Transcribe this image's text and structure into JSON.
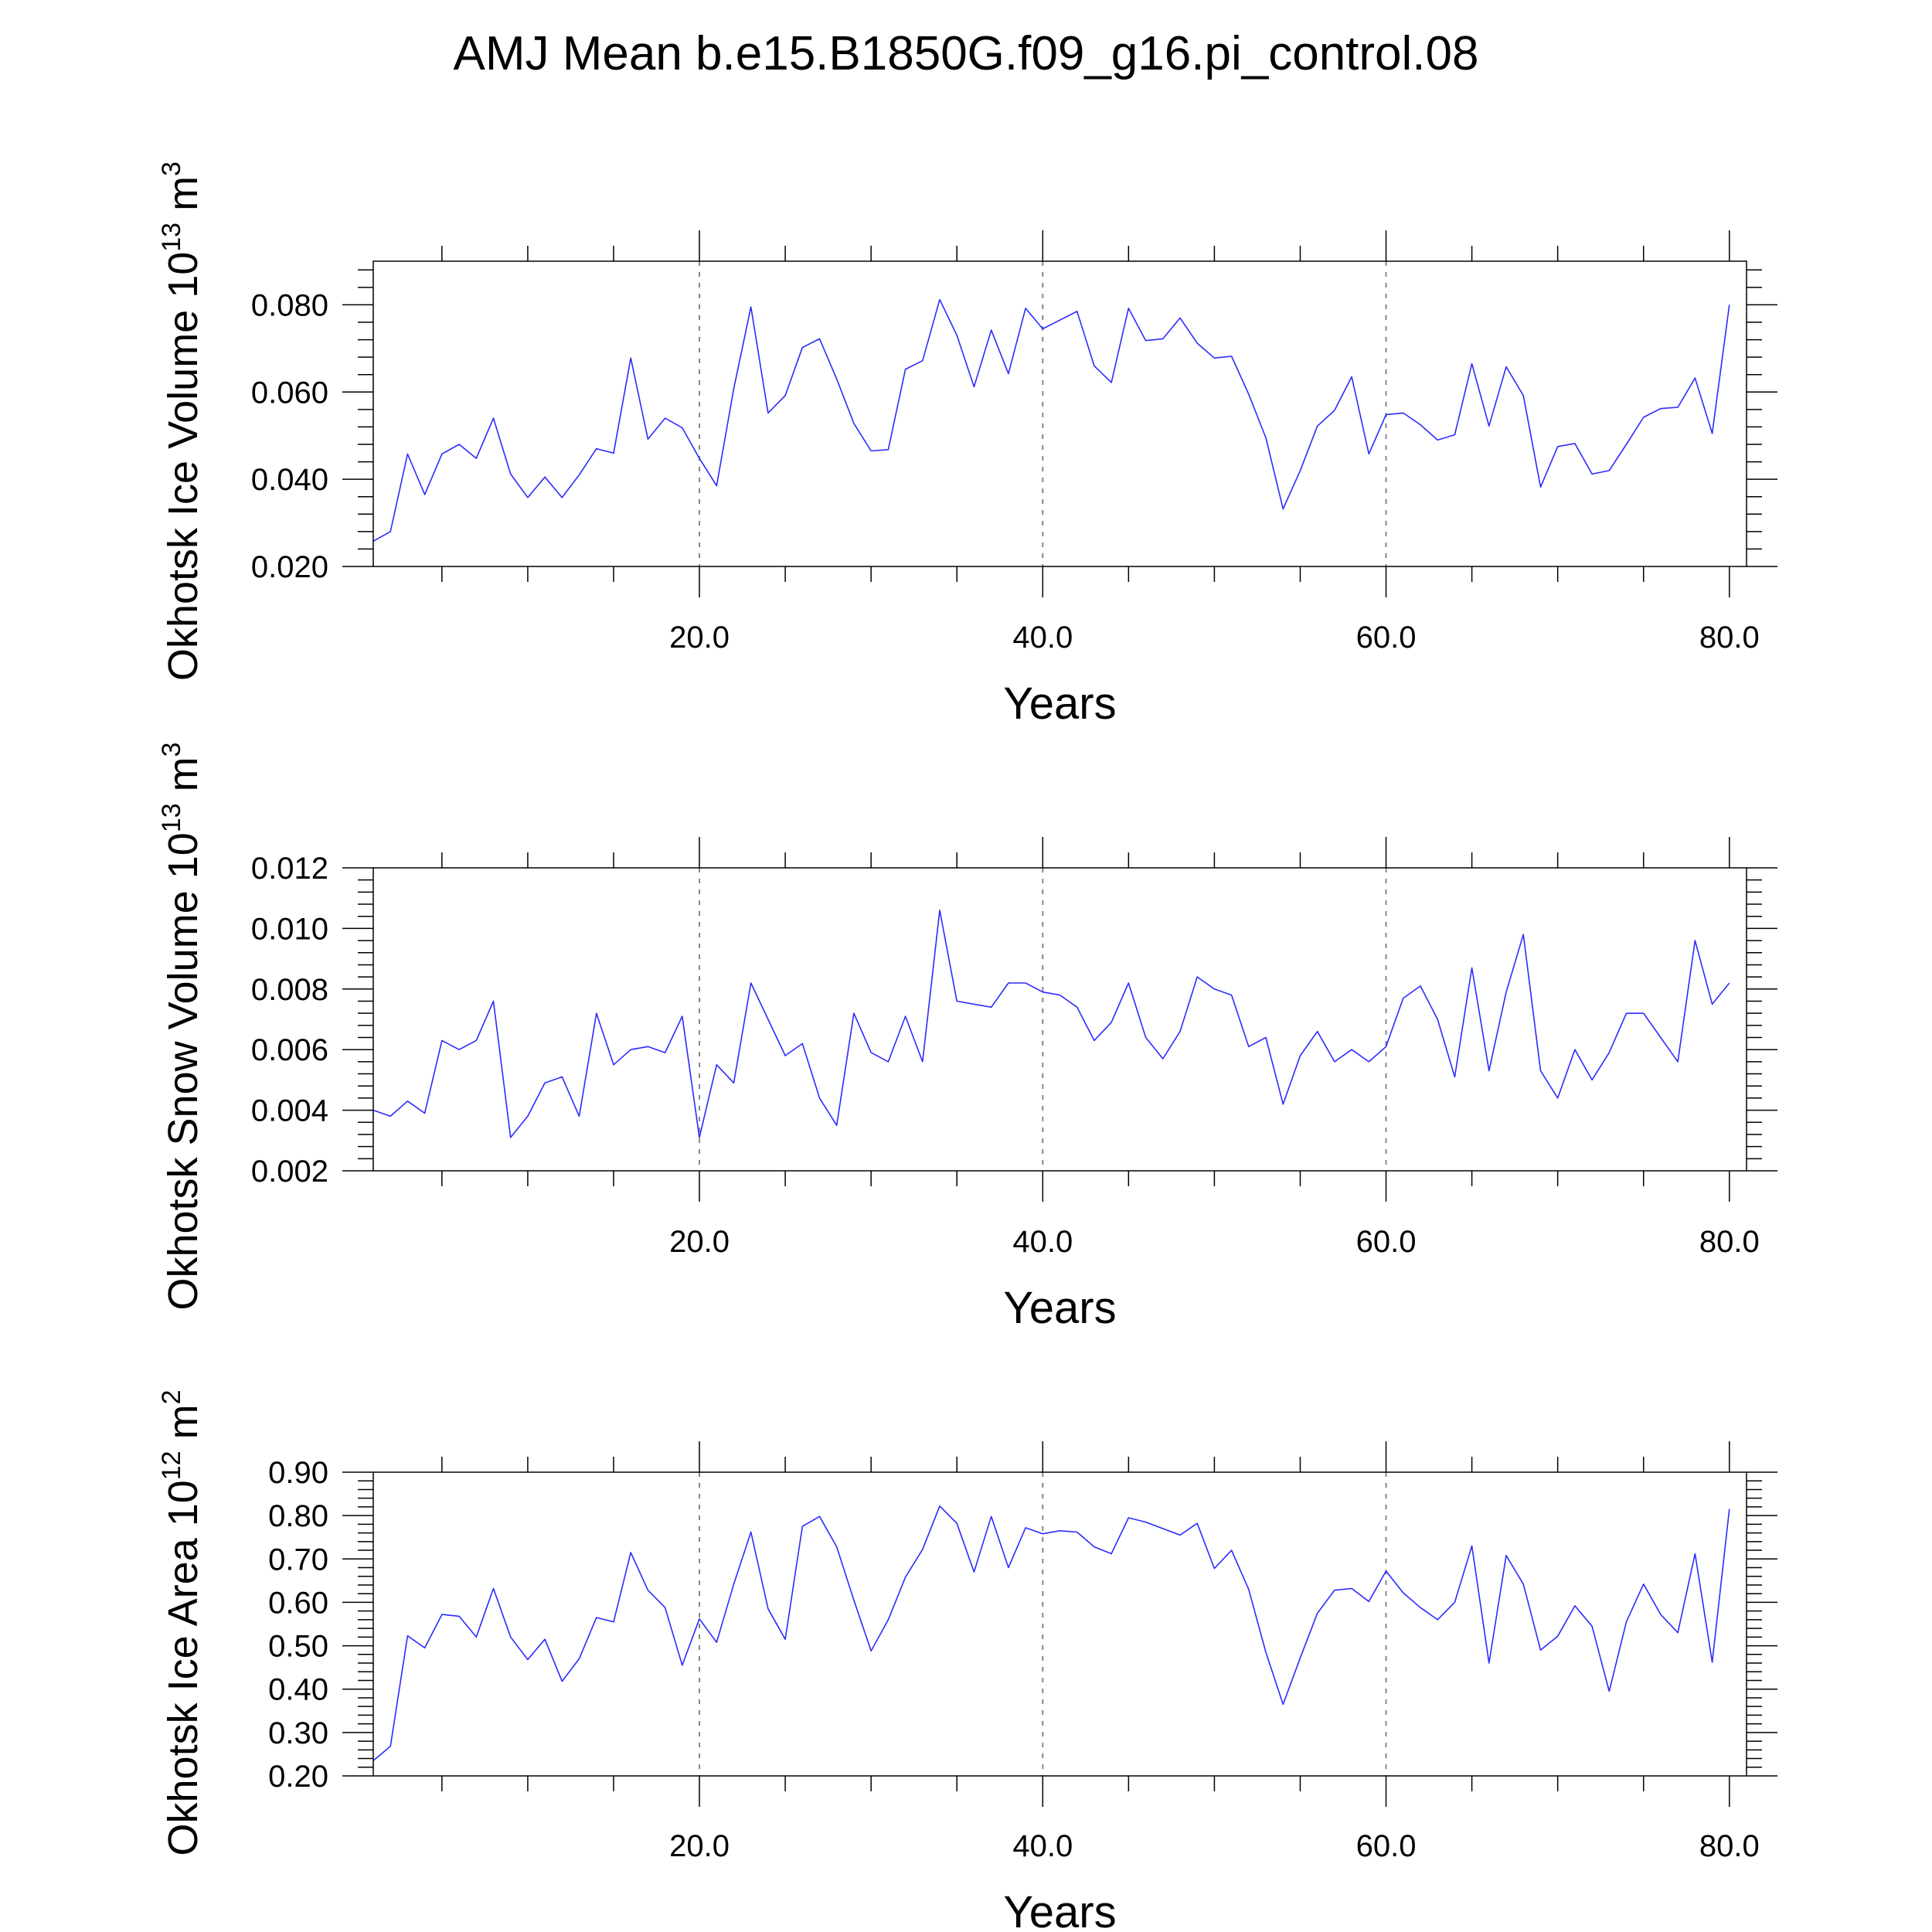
{
  "title": "AMJ Mean b.e15.B1850G.f09_g16.pi_control.08",
  "colors": {
    "series": "#2b2bff",
    "frame": "#000000",
    "grid": "#888888"
  },
  "chart_data": [
    {
      "type": "line",
      "title": "AMJ Mean b.e15.B1850G.f09_g16.pi_control.08",
      "xlabel": "Years",
      "ylabel": {
        "prefix": "Okhotsk Ice Volume 10",
        "exp": "13",
        "unit": " m",
        "unit_exp": "3"
      },
      "xlim": [
        1,
        81
      ],
      "ylim": [
        0.02,
        0.09
      ],
      "yticks": [
        0.02,
        0.04,
        0.06,
        0.08
      ],
      "ytick_labels": [
        "0.020",
        "0.040",
        "0.060",
        "0.080"
      ],
      "xticks": [
        20,
        40,
        60,
        80
      ],
      "xtick_labels": [
        "20.0",
        "40.0",
        "60.0",
        "80.0"
      ],
      "grid_x": [
        20,
        40,
        60
      ],
      "series": [
        {
          "name": "Okhotsk Ice Volume",
          "x_start": 1,
          "values": [
            0.0258,
            0.028,
            0.0458,
            0.0365,
            0.0458,
            0.048,
            0.0448,
            0.054,
            0.0412,
            0.0358,
            0.0405,
            0.0358,
            0.041,
            0.047,
            0.046,
            0.0678,
            0.0492,
            0.054,
            0.0518,
            0.0448,
            0.0385,
            0.0608,
            0.0795,
            0.0552,
            0.0592,
            0.0702,
            0.0722,
            0.063,
            0.0528,
            0.0465,
            0.0468,
            0.0652,
            0.0672,
            0.0812,
            0.073,
            0.0612,
            0.0742,
            0.0642,
            0.0792,
            0.0745,
            0.0765,
            0.0785,
            0.066,
            0.0622,
            0.0792,
            0.0718,
            0.0722,
            0.077,
            0.0712,
            0.0678,
            0.0682,
            0.0595,
            0.0495,
            0.0332,
            0.042,
            0.0522,
            0.0558,
            0.0635,
            0.0458,
            0.0548,
            0.0552,
            0.0525,
            0.049,
            0.0502,
            0.0665,
            0.0522,
            0.0658,
            0.0592,
            0.0382,
            0.0475,
            0.0482,
            0.0412,
            0.042,
            0.048,
            0.0542,
            0.0562,
            0.0565,
            0.0632,
            0.0505,
            0.08
          ]
        }
      ]
    },
    {
      "type": "line",
      "title": "",
      "xlabel": "Years",
      "ylabel": {
        "prefix": "Okhotsk Snow Volume 10",
        "exp": "13",
        "unit": " m",
        "unit_exp": "3"
      },
      "xlim": [
        1,
        81
      ],
      "ylim": [
        0.002,
        0.012
      ],
      "yticks": [
        0.002,
        0.004,
        0.006,
        0.008,
        0.01,
        0.012
      ],
      "ytick_labels": [
        "0.002",
        "0.004",
        "0.006",
        "0.008",
        "0.010",
        "0.012"
      ],
      "xticks": [
        20,
        40,
        60,
        80
      ],
      "xtick_labels": [
        "20.0",
        "40.0",
        "60.0",
        "80.0"
      ],
      "grid_x": [
        20,
        40,
        60
      ],
      "series": [
        {
          "name": "Okhotsk Snow Volume",
          "x_start": 1,
          "values": [
            0.004,
            0.0038,
            0.0043,
            0.0039,
            0.0063,
            0.006,
            0.0063,
            0.0076,
            0.0031,
            0.0038,
            0.0049,
            0.0051,
            0.0038,
            0.0072,
            0.0055,
            0.006,
            0.0061,
            0.0059,
            0.0071,
            0.0031,
            0.0055,
            0.0049,
            0.0082,
            0.007,
            0.0058,
            0.0062,
            0.0044,
            0.0035,
            0.0072,
            0.0059,
            0.0056,
            0.0071,
            0.0056,
            0.0106,
            0.0076,
            0.0075,
            0.0074,
            0.0082,
            0.0082,
            0.0079,
            0.0078,
            0.0074,
            0.0063,
            0.0069,
            0.0082,
            0.0064,
            0.0057,
            0.0066,
            0.0084,
            0.008,
            0.0078,
            0.0061,
            0.0064,
            0.0042,
            0.0058,
            0.0066,
            0.0056,
            0.006,
            0.0056,
            0.0061,
            0.0077,
            0.0081,
            0.007,
            0.0051,
            0.0087,
            0.0053,
            0.0079,
            0.0098,
            0.0053,
            0.0044,
            0.006,
            0.005,
            0.0059,
            0.0072,
            0.0072,
            0.0064,
            0.0056,
            0.0096,
            0.0075,
            0.0082
          ]
        }
      ]
    },
    {
      "type": "line",
      "title": "",
      "xlabel": "Years",
      "ylabel": {
        "prefix": "Okhotsk Ice Area 10",
        "exp": "12",
        "unit": " m",
        "unit_exp": "2"
      },
      "xlim": [
        1,
        81
      ],
      "ylim": [
        0.2,
        0.9
      ],
      "yticks": [
        0.2,
        0.3,
        0.4,
        0.5,
        0.6,
        0.7,
        0.8,
        0.9
      ],
      "ytick_labels": [
        "0.20",
        "0.30",
        "0.40",
        "0.50",
        "0.60",
        "0.70",
        "0.80",
        "0.90"
      ],
      "xticks": [
        20,
        40,
        60,
        80
      ],
      "xtick_labels": [
        "20.0",
        "40.0",
        "60.0",
        "80.0"
      ],
      "grid_x": [
        20,
        40,
        60
      ],
      "series": [
        {
          "name": "Okhotsk Ice Area",
          "x_start": 1,
          "values": [
            0.235,
            0.268,
            0.523,
            0.495,
            0.572,
            0.568,
            0.52,
            0.632,
            0.52,
            0.468,
            0.515,
            0.418,
            0.47,
            0.565,
            0.555,
            0.715,
            0.628,
            0.588,
            0.455,
            0.562,
            0.508,
            0.642,
            0.762,
            0.585,
            0.515,
            0.775,
            0.798,
            0.728,
            0.605,
            0.488,
            0.56,
            0.658,
            0.722,
            0.822,
            0.782,
            0.67,
            0.798,
            0.68,
            0.772,
            0.758,
            0.765,
            0.762,
            0.728,
            0.712,
            0.795,
            0.785,
            0.77,
            0.755,
            0.782,
            0.678,
            0.72,
            0.63,
            0.485,
            0.365,
            0.472,
            0.575,
            0.628,
            0.632,
            0.602,
            0.672,
            0.622,
            0.588,
            0.56,
            0.6,
            0.73,
            0.46,
            0.708,
            0.642,
            0.49,
            0.522,
            0.592,
            0.545,
            0.395,
            0.555,
            0.642,
            0.572,
            0.53,
            0.712,
            0.462,
            0.815
          ]
        }
      ]
    }
  ]
}
